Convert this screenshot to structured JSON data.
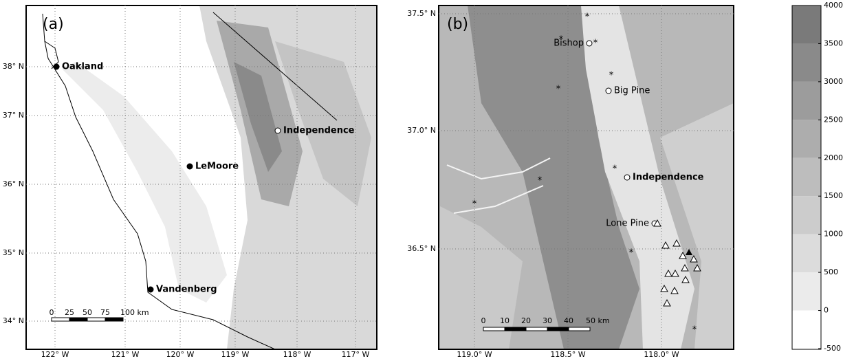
{
  "panel_a": {
    "label": "(a)",
    "lat_labels": [
      "38° N",
      "37° N",
      "36° N",
      "35° N",
      "34° N"
    ],
    "lon_labels": [
      "122° W",
      "121° W",
      "120° W",
      "119° W",
      "118° W",
      "117° W"
    ],
    "places": [
      "Oakland",
      "LeMoore",
      "Vandenberg",
      "Independence"
    ],
    "scale_labels": [
      "0",
      "25",
      "50",
      "75",
      "100 km"
    ]
  },
  "panel_b": {
    "label": "(b)",
    "lat_labels": [
      "37.5° N",
      "37.0° N",
      "36.5° N"
    ],
    "lon_labels": [
      "119.0° W",
      "118.5° W",
      "118.0° W"
    ],
    "places": [
      "Bishop",
      "Big Pine",
      "Independence",
      "Lone Pine"
    ],
    "scale_labels": [
      "0",
      "10",
      "20",
      "30",
      "40",
      "50 km"
    ]
  },
  "colorbar": {
    "ticks": [
      4000,
      3500,
      3000,
      2500,
      2000,
      1500,
      1000,
      500,
      0,
      -500
    ]
  }
}
